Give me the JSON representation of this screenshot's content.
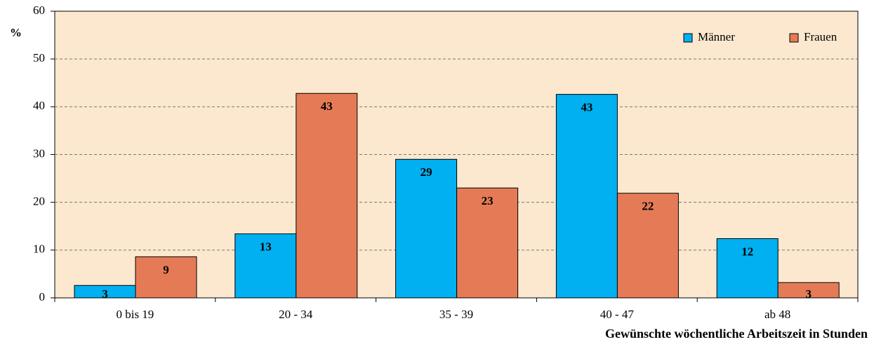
{
  "chart_data": {
    "type": "bar",
    "y_label": "%",
    "x_label": "Gewünschte wöchentliche Arbeitszeit in Stunden",
    "categories": [
      "0 bis 19",
      "20 - 34",
      "35 - 39",
      "40 - 47",
      "ab 48"
    ],
    "series": [
      {
        "name": "Männer",
        "color": "#00b0f0",
        "values": [
          2.6,
          13.4,
          29,
          42.6,
          12.4
        ],
        "value_labels": [
          "3",
          "13",
          "29",
          "43",
          "12"
        ]
      },
      {
        "name": "Frauen",
        "color": "#e57b56",
        "values": [
          8.6,
          42.8,
          23,
          21.9,
          3.2
        ],
        "value_labels": [
          "9",
          "43",
          "23",
          "22",
          "3"
        ]
      }
    ],
    "ylim": [
      0,
      60
    ],
    "yticks": [
      0,
      10,
      20,
      30,
      40,
      50,
      60
    ],
    "grid": true,
    "legend": "top-right"
  }
}
